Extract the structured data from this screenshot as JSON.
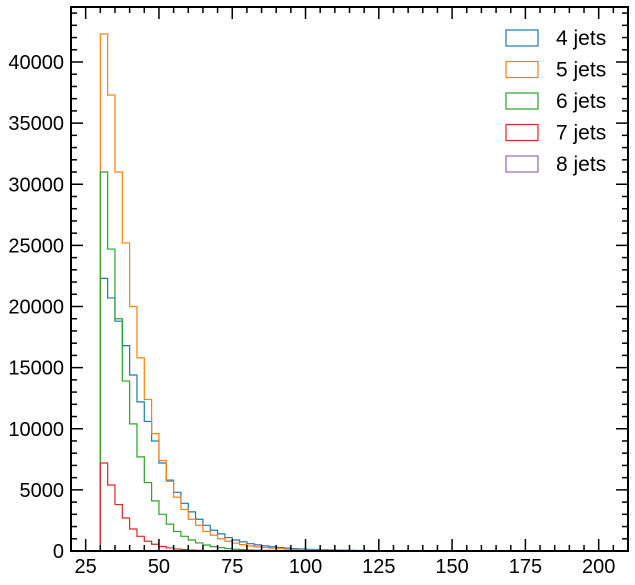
{
  "chart_data": {
    "type": "histogram",
    "xlim": [
      20,
      210
    ],
    "ylim": [
      0,
      44500
    ],
    "x_ticks": [
      25,
      50,
      75,
      100,
      125,
      150,
      175,
      200
    ],
    "y_ticks": [
      0,
      5000,
      10000,
      15000,
      20000,
      25000,
      30000,
      35000,
      40000
    ],
    "grid": false,
    "legend_position": "top-right",
    "bin_edges": [
      30,
      32.5,
      35,
      37.5,
      40,
      42.5,
      45,
      47.5,
      50,
      52.5,
      55,
      57.5,
      60,
      62.5,
      65,
      67.5,
      70,
      72.5,
      75,
      77.5,
      80,
      82.5,
      85,
      87.5,
      90,
      92.5,
      95,
      97.5,
      100,
      102.5,
      105,
      107.5,
      110,
      112.5,
      115,
      117.5,
      120,
      122.5,
      125,
      127.5,
      130,
      132.5,
      135,
      137.5,
      140
    ],
    "series": [
      {
        "name": "4 jets",
        "color": "#1f77b4",
        "values": [
          22300,
          20700,
          18800,
          16800,
          14400,
          12200,
          10600,
          9000,
          7200,
          5800,
          4800,
          3900,
          3200,
          2600,
          2100,
          1700,
          1400,
          1100,
          900,
          750,
          600,
          500,
          420,
          350,
          290,
          240,
          200,
          170,
          140,
          120,
          100,
          85,
          70,
          60,
          50,
          45,
          40,
          35,
          30,
          25,
          22,
          20,
          18,
          15
        ]
      },
      {
        "name": "5 jets",
        "color": "#ff7f0e",
        "values": [
          42300,
          37300,
          31000,
          25200,
          20000,
          15800,
          12400,
          9600,
          7400,
          5700,
          4400,
          3400,
          2600,
          2100,
          1600,
          1300,
          1000,
          800,
          650,
          520,
          420,
          340,
          280,
          230,
          190,
          160,
          130,
          110,
          90,
          75,
          60,
          50,
          40,
          35,
          30,
          25,
          20,
          18,
          15,
          12,
          10,
          8,
          6,
          5
        ]
      },
      {
        "name": "6 jets",
        "color": "#2ca02c",
        "values": [
          31000,
          24700,
          19000,
          13900,
          10400,
          7700,
          5600,
          4100,
          3000,
          2200,
          1600,
          1200,
          900,
          660,
          490,
          360,
          270,
          200,
          150,
          110,
          85,
          65,
          50,
          40,
          30,
          25,
          20,
          15,
          12,
          10,
          8,
          6,
          5,
          4,
          3,
          3,
          2,
          2,
          2,
          1,
          1,
          1,
          1,
          1
        ]
      },
      {
        "name": "7 jets",
        "color": "#d62728",
        "values": [
          7200,
          5400,
          3800,
          2700,
          1800,
          1200,
          800,
          550,
          370,
          250,
          170,
          110,
          75,
          50,
          35,
          25,
          18,
          12,
          8,
          6,
          4,
          3,
          2,
          2,
          1,
          1,
          1,
          1,
          1,
          0,
          0,
          0,
          0,
          0,
          0,
          0,
          0,
          0,
          0,
          0,
          0,
          0,
          0,
          0
        ]
      },
      {
        "name": "8 jets",
        "color": "#9467bd",
        "values": [
          0,
          0,
          0,
          0,
          0,
          0,
          0,
          0,
          0,
          0,
          0,
          0,
          0,
          0,
          0,
          0,
          0,
          0,
          0,
          0,
          0,
          0,
          0,
          0,
          0,
          0,
          0,
          0,
          0,
          0,
          0,
          0,
          0,
          0,
          0,
          0,
          0,
          0,
          0,
          0,
          0,
          0,
          0,
          0
        ]
      }
    ]
  }
}
